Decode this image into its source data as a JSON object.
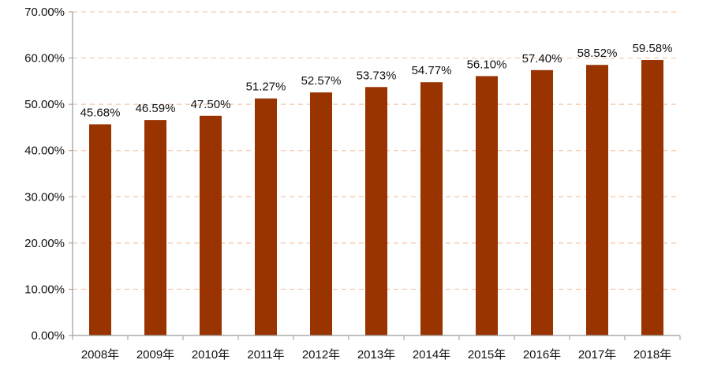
{
  "chart_data": {
    "type": "bar",
    "title": "",
    "xlabel": "",
    "ylabel": "",
    "categories": [
      "2008年",
      "2009年",
      "2010年",
      "2011年",
      "2012年",
      "2013年",
      "2014年",
      "2015年",
      "2016年",
      "2017年",
      "2018年"
    ],
    "values": [
      45.68,
      46.59,
      47.5,
      51.27,
      52.57,
      53.73,
      54.77,
      56.1,
      57.4,
      58.52,
      59.58
    ],
    "value_labels": [
      "45.68%",
      "46.59%",
      "47.50%",
      "51.27%",
      "52.57%",
      "53.73%",
      "54.77%",
      "56.10%",
      "57.40%",
      "58.52%",
      "59.58%"
    ],
    "ylim": [
      0,
      70
    ],
    "yticks": [
      0,
      10,
      20,
      30,
      40,
      50,
      60,
      70
    ],
    "ytick_labels": [
      "0.00%",
      "10.00%",
      "20.00%",
      "30.00%",
      "40.00%",
      "50.00%",
      "60.00%",
      "70.00%"
    ],
    "grid": true,
    "grid_style": "dashed",
    "legend": "none",
    "colors": {
      "bar": "#993300",
      "grid": "#f4c6a8",
      "axis": "#9a9a9a",
      "text": "#111111"
    }
  }
}
